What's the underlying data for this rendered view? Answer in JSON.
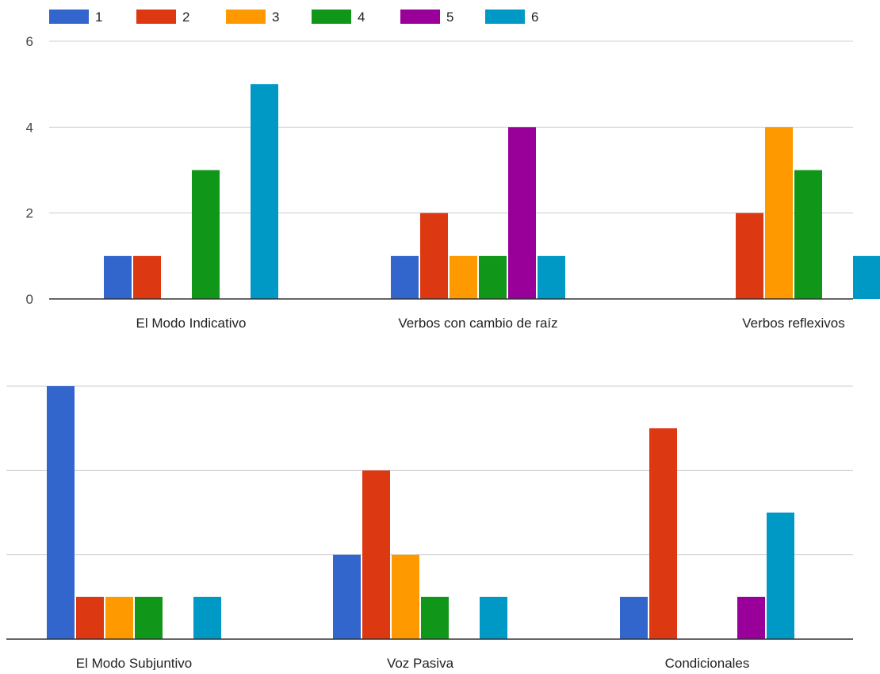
{
  "chart_data": {
    "type": "bar",
    "ylim": [
      0,
      6
    ],
    "y_ticks": [
      0,
      2,
      4,
      6
    ],
    "grid": true,
    "legend_position": "top-left",
    "series": [
      {
        "name": "1",
        "color": "#3366cc",
        "values": [
          1,
          1,
          0,
          6,
          2,
          1
        ]
      },
      {
        "name": "2",
        "color": "#dc3912",
        "values": [
          1,
          2,
          2,
          1,
          4,
          5
        ]
      },
      {
        "name": "3",
        "color": "#ff9900",
        "values": [
          0,
          1,
          4,
          1,
          2,
          0
        ]
      },
      {
        "name": "4",
        "color": "#109618",
        "values": [
          3,
          1,
          3,
          1,
          1,
          0
        ]
      },
      {
        "name": "5",
        "color": "#990099",
        "values": [
          0,
          4,
          0,
          0,
          0,
          1
        ]
      },
      {
        "name": "6",
        "color": "#0099c6",
        "values": [
          5,
          1,
          1,
          1,
          1,
          3
        ]
      }
    ],
    "panels": [
      {
        "categories": [
          "El Modo Indicativo",
          "Verbos con cambio de raíz",
          "Verbos reflexivos"
        ],
        "show_y_tick_labels": true
      },
      {
        "categories": [
          "El Modo Subjuntivo",
          "Voz Pasiva",
          "Condicionales"
        ],
        "show_y_tick_labels": false
      }
    ]
  }
}
